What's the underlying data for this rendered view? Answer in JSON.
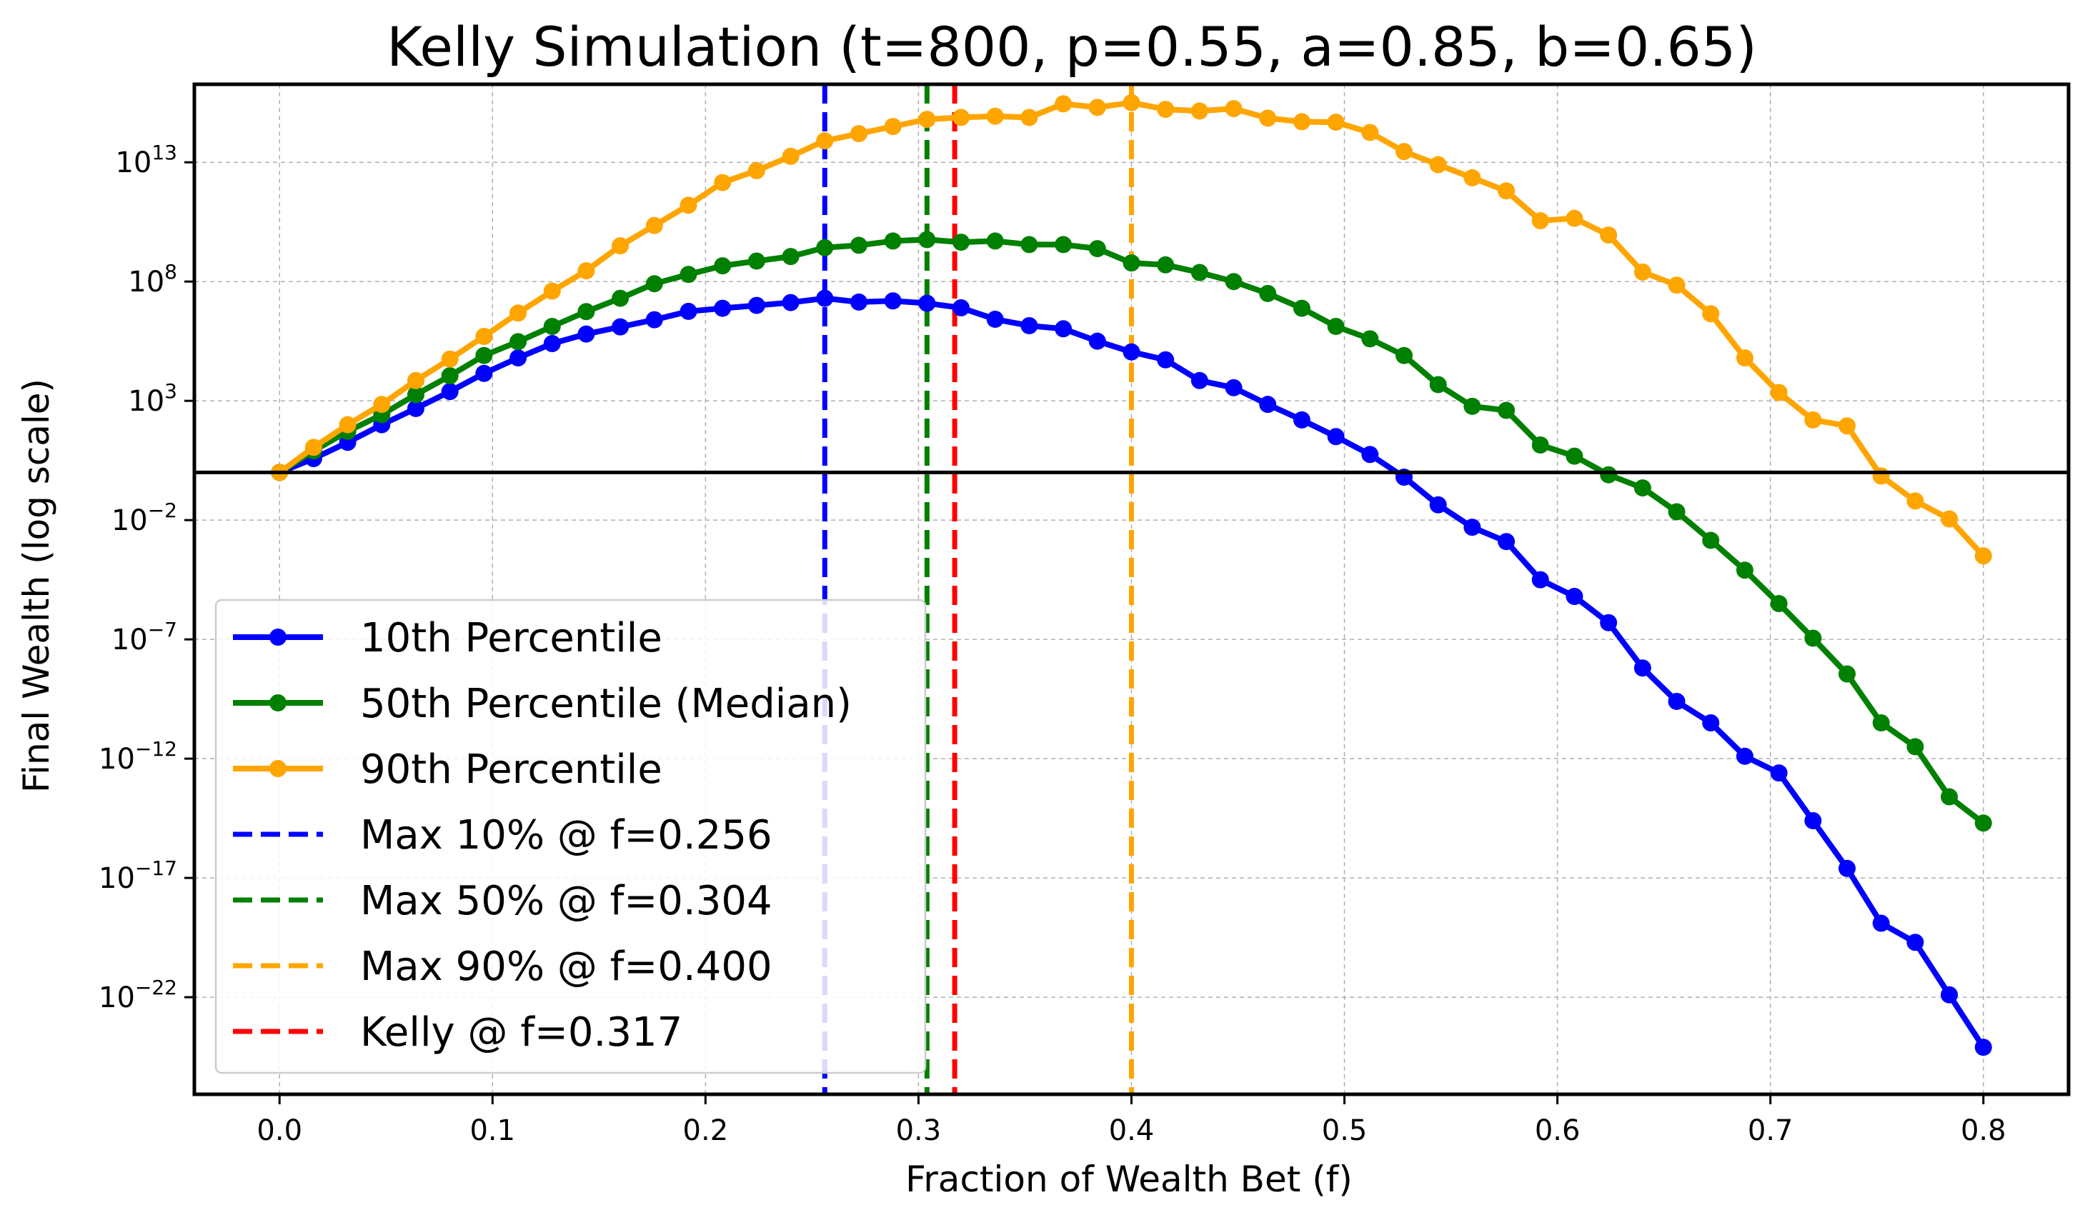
{
  "chart_data": {
    "type": "line",
    "title": "Kelly Simulation (t=800, p=0.55, a=0.85, b=0.65)",
    "xlabel": "Fraction of Wealth Bet (f)",
    "ylabel": "Final Wealth (log scale)",
    "yscale": "log",
    "xlim": [
      -0.04,
      0.84
    ],
    "ylim_log10": [
      -26.07,
      16.27
    ],
    "x_ticks": [
      0.0,
      0.1,
      0.2,
      0.3,
      0.4,
      0.5,
      0.6,
      0.7,
      0.8
    ],
    "x_tick_labels": [
      "0.0",
      "0.1",
      "0.2",
      "0.3",
      "0.4",
      "0.5",
      "0.6",
      "0.7",
      "0.8"
    ],
    "y_ticks_log10": [
      13,
      8,
      3,
      -2,
      -7,
      -12,
      -17,
      -22
    ],
    "y_tick_labels": [
      {
        "base": "10",
        "exp": "13"
      },
      {
        "base": "10",
        "exp": "8"
      },
      {
        "base": "10",
        "exp": "3"
      },
      {
        "base": "10",
        "exp": "−2"
      },
      {
        "base": "10",
        "exp": "−7"
      },
      {
        "base": "10",
        "exp": "−12"
      },
      {
        "base": "10",
        "exp": "−17"
      },
      {
        "base": "10",
        "exp": "−22"
      }
    ],
    "grid": true,
    "horizontal_line_log10": 0,
    "legend_position": "lower-left",
    "x": [
      0.0,
      0.016,
      0.032,
      0.048,
      0.064,
      0.08,
      0.096,
      0.112,
      0.128,
      0.144,
      0.16,
      0.176,
      0.192,
      0.208,
      0.224,
      0.24,
      0.256,
      0.272,
      0.288,
      0.304,
      0.32,
      0.336,
      0.352,
      0.368,
      0.384,
      0.4,
      0.416,
      0.432,
      0.448,
      0.464,
      0.48,
      0.496,
      0.512,
      0.528,
      0.544,
      0.56,
      0.576,
      0.592,
      0.608,
      0.624,
      0.64,
      0.656,
      0.672,
      0.688,
      0.704,
      0.72,
      0.736,
      0.752,
      0.768,
      0.784,
      0.8
    ],
    "series": [
      {
        "name": "10th Percentile",
        "color": "#0000ff",
        "values_log10": [
          0.0,
          0.58,
          1.26,
          2.0,
          2.68,
          3.39,
          4.15,
          4.8,
          5.4,
          5.8,
          6.1,
          6.4,
          6.75,
          6.88,
          7.0,
          7.12,
          7.3,
          7.14,
          7.19,
          7.09,
          6.9,
          6.42,
          6.15,
          6.02,
          5.5,
          5.05,
          4.72,
          3.85,
          3.55,
          2.85,
          2.2,
          1.5,
          0.75,
          -0.2,
          -1.36,
          -2.3,
          -2.9,
          -4.5,
          -5.2,
          -6.3,
          -8.2,
          -9.6,
          -10.5,
          -11.9,
          -12.6,
          -14.6,
          -16.6,
          -18.9,
          -19.7,
          -21.9,
          -24.1
        ]
      },
      {
        "name": "50th Percentile (Median)",
        "color": "#008000",
        "values_log10": [
          0.0,
          0.9,
          1.72,
          2.42,
          3.26,
          4.05,
          4.9,
          5.48,
          6.12,
          6.74,
          7.3,
          7.91,
          8.3,
          8.66,
          8.86,
          9.05,
          9.42,
          9.52,
          9.7,
          9.76,
          9.65,
          9.7,
          9.55,
          9.55,
          9.38,
          8.78,
          8.7,
          8.38,
          8.0,
          7.5,
          6.88,
          6.12,
          5.6,
          4.9,
          3.68,
          2.77,
          2.6,
          1.15,
          0.68,
          -0.1,
          -0.65,
          -1.65,
          -2.85,
          -4.1,
          -5.5,
          -6.95,
          -8.45,
          -10.5,
          -11.5,
          -13.6,
          -14.7
        ]
      },
      {
        "name": "90th Percentile",
        "color": "#ffa500",
        "values_log10": [
          0.0,
          1.05,
          2.0,
          2.85,
          3.85,
          4.75,
          5.7,
          6.68,
          7.6,
          8.45,
          9.5,
          10.35,
          11.2,
          12.15,
          12.65,
          13.25,
          13.9,
          14.2,
          14.5,
          14.8,
          14.88,
          14.93,
          14.88,
          15.45,
          15.3,
          15.5,
          15.22,
          15.15,
          15.25,
          14.85,
          14.7,
          14.68,
          14.25,
          13.45,
          12.9,
          12.35,
          11.8,
          10.55,
          10.65,
          9.95,
          8.4,
          7.85,
          6.65,
          4.8,
          3.35,
          2.2,
          1.95,
          -0.15,
          -1.2,
          -1.95,
          -3.5
        ]
      }
    ],
    "vertical_lines": [
      {
        "label": "Max 10% @ f=0.256",
        "x": 0.256,
        "color": "#0000ff"
      },
      {
        "label": "Max 50% @ f=0.304",
        "x": 0.304,
        "color": "#008000"
      },
      {
        "label": "Max 90% @ f=0.400",
        "x": 0.4,
        "color": "#ffa500"
      },
      {
        "label": "Kelly @ f=0.317",
        "x": 0.317,
        "color": "#ff0000"
      }
    ]
  }
}
